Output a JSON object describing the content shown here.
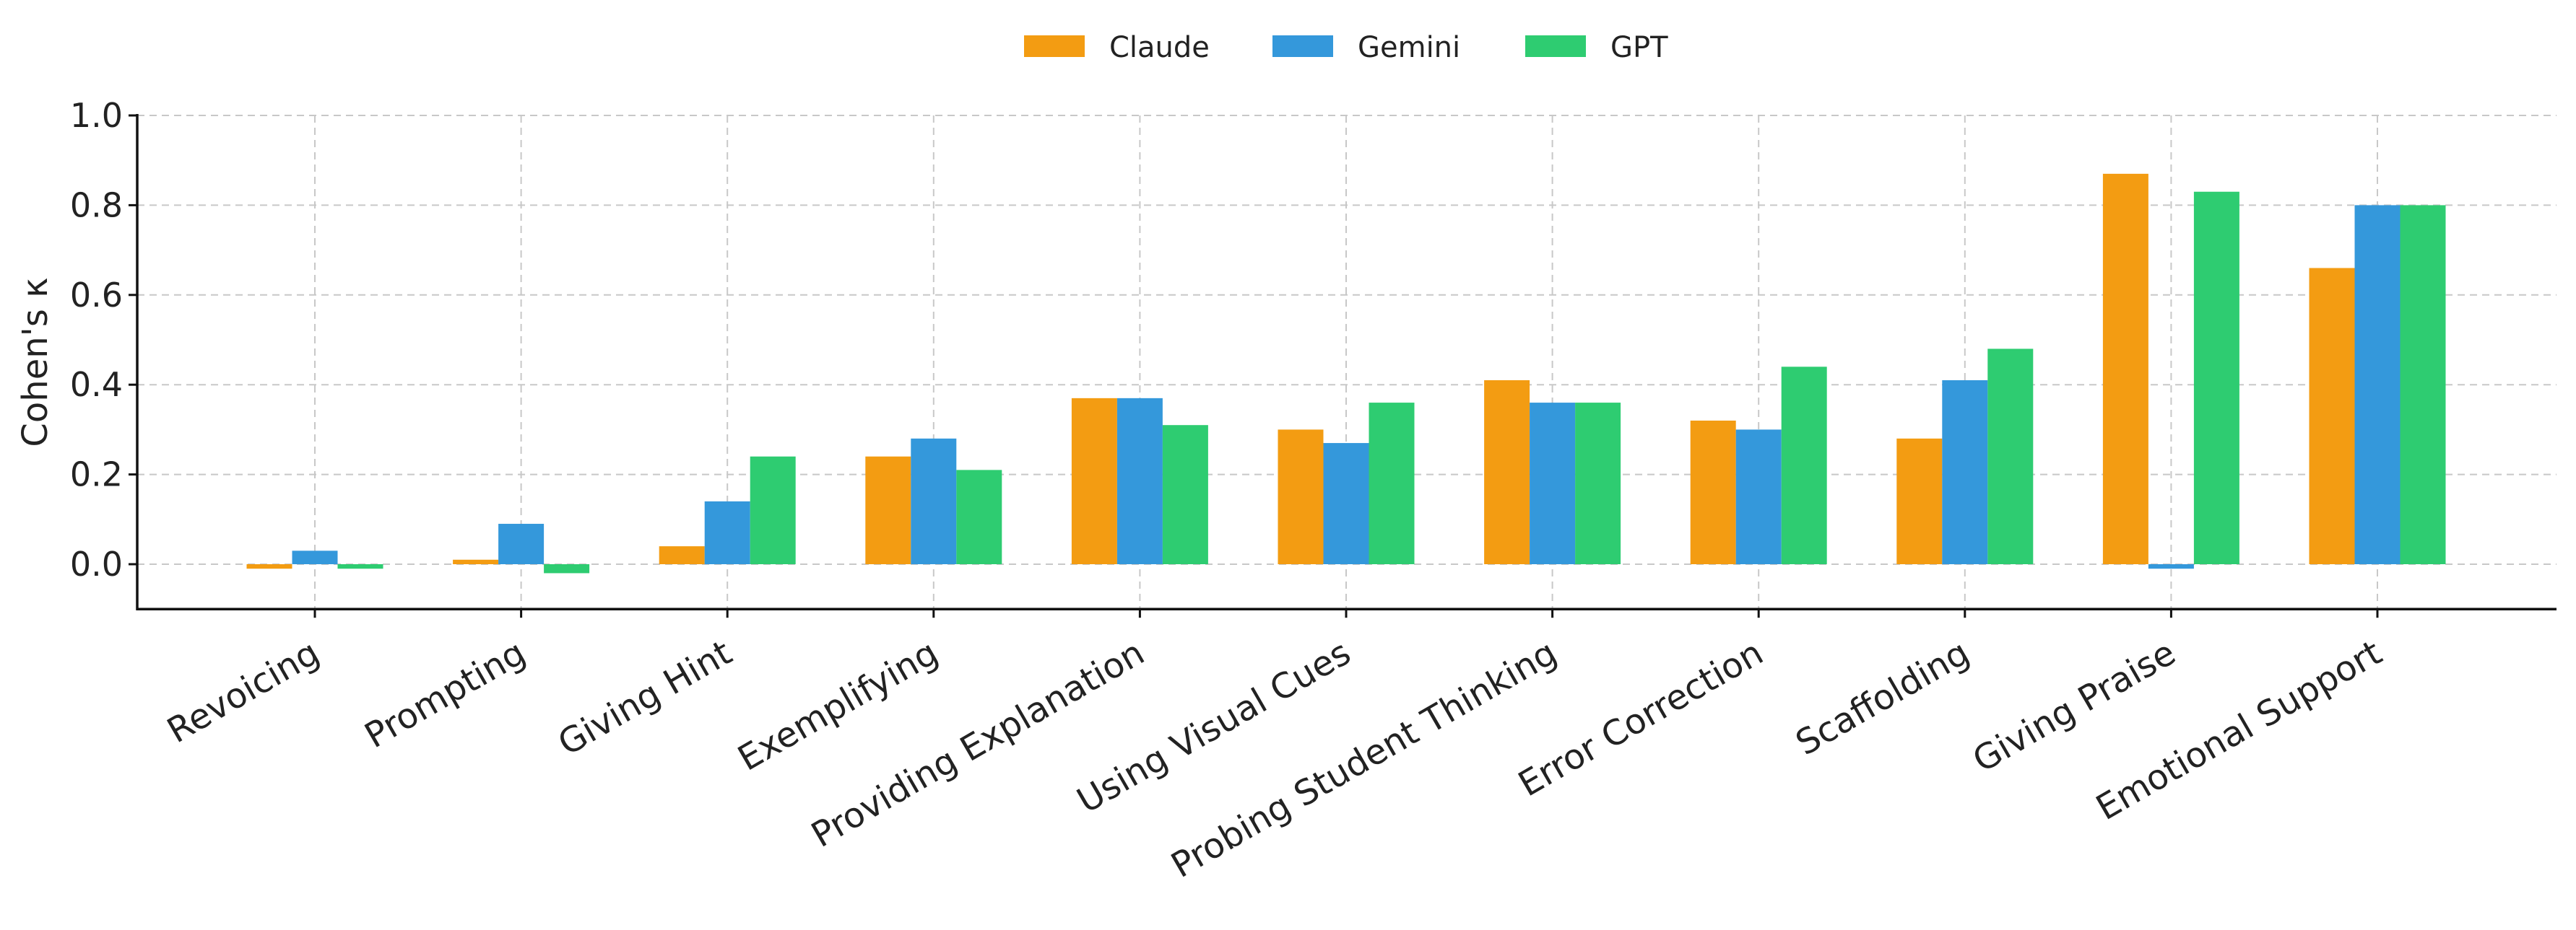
{
  "chart_data": {
    "type": "bar",
    "title": "",
    "xlabel": "",
    "ylabel": "Cohen's κ",
    "ylim": [
      -0.1,
      1.0
    ],
    "yticks": [
      "0.0",
      "0.2",
      "0.4",
      "0.6",
      "0.8",
      "1.0"
    ],
    "grid": true,
    "legend_position": "top-center",
    "categories": [
      "Revoicing",
      "Prompting",
      "Giving Hint",
      "Exemplifying",
      "Providing Explanation",
      "Using Visual Cues",
      "Probing Student Thinking",
      "Error Correction",
      "Scaffolding",
      "Giving Praise",
      "Emotional Support"
    ],
    "series": [
      {
        "name": "Claude",
        "color": "#F39C12",
        "values": [
          -0.01,
          0.01,
          0.04,
          0.24,
          0.37,
          0.3,
          0.41,
          0.32,
          0.28,
          0.87,
          0.66
        ]
      },
      {
        "name": "Gemini",
        "color": "#3498DB",
        "values": [
          0.03,
          0.09,
          0.14,
          0.28,
          0.37,
          0.27,
          0.36,
          0.3,
          0.41,
          -0.01,
          0.8
        ]
      },
      {
        "name": "GPT",
        "color": "#2ECC71",
        "values": [
          -0.01,
          -0.02,
          0.24,
          0.21,
          0.31,
          0.36,
          0.36,
          0.44,
          0.48,
          0.83,
          0.8
        ]
      }
    ]
  }
}
